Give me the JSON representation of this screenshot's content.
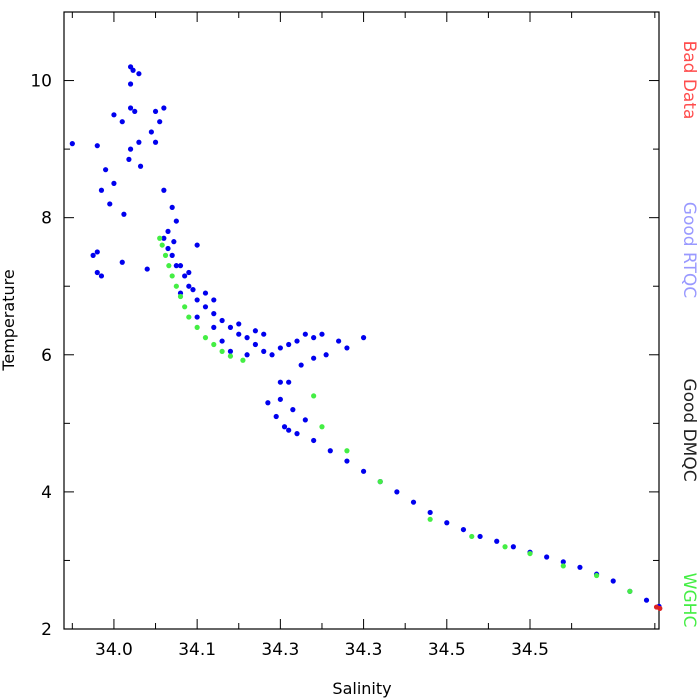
{
  "chart_data": {
    "type": "scatter",
    "title": "",
    "xlabel": "Salinity",
    "ylabel": "Temperature",
    "xlim": [
      33.94,
      34.655
    ],
    "ylim": [
      2.0,
      11.0
    ],
    "grid": false,
    "x_tick_labels": [
      "34.0",
      "34.1",
      "34.3",
      "34.3",
      "34.5",
      "34.5"
    ],
    "y_tick_labels": [
      "2",
      "4",
      "6",
      "8",
      "10"
    ],
    "legend": {
      "placement": "right",
      "entries": [
        {
          "label": "Bad Data",
          "color": "#ff4d4d"
        },
        {
          "label": "Good RTQC",
          "color": "#9999ff"
        },
        {
          "label": "Good DMQC",
          "color": "#222222"
        },
        {
          "label": "WGHC",
          "color": "#44ee44"
        }
      ]
    },
    "series": [
      {
        "name": "Good RTQC",
        "color": "#0000ee",
        "points": [
          [
            34.02,
            10.2
          ],
          [
            34.023,
            10.15
          ],
          [
            34.03,
            10.1
          ],
          [
            34.02,
            9.95
          ],
          [
            34.02,
            9.6
          ],
          [
            34.0,
            9.5
          ],
          [
            34.01,
            9.4
          ],
          [
            34.025,
            9.55
          ],
          [
            34.05,
            9.55
          ],
          [
            34.055,
            9.4
          ],
          [
            34.045,
            9.25
          ],
          [
            34.05,
            9.1
          ],
          [
            34.06,
            9.6
          ],
          [
            33.98,
            9.05
          ],
          [
            33.95,
            9.08
          ],
          [
            33.99,
            8.7
          ],
          [
            33.985,
            8.4
          ],
          [
            33.995,
            8.2
          ],
          [
            34.0,
            8.5
          ],
          [
            34.012,
            8.05
          ],
          [
            34.018,
            8.85
          ],
          [
            34.02,
            9.0
          ],
          [
            34.03,
            9.1
          ],
          [
            34.032,
            8.75
          ],
          [
            34.06,
            8.4
          ],
          [
            34.07,
            8.15
          ],
          [
            34.075,
            7.95
          ],
          [
            34.065,
            7.8
          ],
          [
            34.072,
            7.65
          ],
          [
            34.06,
            7.7
          ],
          [
            33.98,
            7.5
          ],
          [
            33.975,
            7.45
          ],
          [
            33.98,
            7.2
          ],
          [
            33.985,
            7.15
          ],
          [
            34.01,
            7.35
          ],
          [
            34.04,
            7.25
          ],
          [
            34.07,
            7.45
          ],
          [
            34.08,
            7.3
          ],
          [
            34.085,
            7.15
          ],
          [
            34.09,
            7.0
          ],
          [
            34.095,
            6.95
          ],
          [
            34.1,
            6.8
          ],
          [
            34.11,
            6.7
          ],
          [
            34.12,
            6.6
          ],
          [
            34.13,
            6.5
          ],
          [
            34.14,
            6.4
          ],
          [
            34.15,
            6.3
          ],
          [
            34.16,
            6.25
          ],
          [
            34.17,
            6.15
          ],
          [
            34.18,
            6.05
          ],
          [
            34.19,
            6.0
          ],
          [
            34.2,
            6.1
          ],
          [
            34.21,
            6.15
          ],
          [
            34.22,
            6.2
          ],
          [
            34.23,
            6.3
          ],
          [
            34.24,
            6.25
          ],
          [
            34.25,
            6.3
          ],
          [
            34.27,
            6.2
          ],
          [
            34.3,
            6.25
          ],
          [
            34.28,
            6.1
          ],
          [
            34.255,
            6.0
          ],
          [
            34.24,
            5.95
          ],
          [
            34.225,
            5.85
          ],
          [
            34.21,
            5.6
          ],
          [
            34.2,
            5.35
          ],
          [
            34.195,
            5.1
          ],
          [
            34.21,
            4.9
          ],
          [
            34.22,
            4.85
          ],
          [
            34.24,
            4.75
          ],
          [
            34.26,
            4.6
          ],
          [
            34.28,
            4.45
          ],
          [
            34.3,
            4.3
          ],
          [
            34.32,
            4.15
          ],
          [
            34.34,
            4.0
          ],
          [
            34.36,
            3.85
          ],
          [
            34.38,
            3.7
          ],
          [
            34.4,
            3.55
          ],
          [
            34.42,
            3.45
          ],
          [
            34.44,
            3.35
          ],
          [
            34.46,
            3.28
          ],
          [
            34.48,
            3.2
          ],
          [
            34.5,
            3.12
          ],
          [
            34.52,
            3.05
          ],
          [
            34.54,
            2.98
          ],
          [
            34.56,
            2.9
          ],
          [
            34.58,
            2.8
          ],
          [
            34.6,
            2.7
          ],
          [
            34.62,
            2.55
          ],
          [
            34.64,
            2.42
          ],
          [
            34.655,
            2.33
          ],
          [
            34.2,
            5.6
          ],
          [
            34.215,
            5.2
          ],
          [
            34.185,
            5.3
          ],
          [
            34.23,
            5.05
          ],
          [
            34.205,
            4.95
          ],
          [
            34.1,
            6.55
          ],
          [
            34.12,
            6.4
          ],
          [
            34.13,
            6.2
          ],
          [
            34.15,
            6.45
          ],
          [
            34.17,
            6.35
          ],
          [
            34.14,
            6.05
          ],
          [
            34.16,
            6.0
          ],
          [
            34.18,
            6.3
          ],
          [
            34.08,
            6.9
          ],
          [
            34.09,
            7.2
          ],
          [
            34.1,
            7.6
          ],
          [
            34.11,
            6.9
          ],
          [
            34.12,
            6.8
          ],
          [
            34.065,
            7.55
          ],
          [
            34.075,
            7.3
          ]
        ]
      },
      {
        "name": "WGHC",
        "color": "#44ee44",
        "points": [
          [
            34.055,
            7.7
          ],
          [
            34.058,
            7.6
          ],
          [
            34.062,
            7.45
          ],
          [
            34.066,
            7.3
          ],
          [
            34.07,
            7.15
          ],
          [
            34.075,
            7.0
          ],
          [
            34.08,
            6.85
          ],
          [
            34.085,
            6.7
          ],
          [
            34.09,
            6.55
          ],
          [
            34.1,
            6.4
          ],
          [
            34.11,
            6.25
          ],
          [
            34.12,
            6.15
          ],
          [
            34.13,
            6.05
          ],
          [
            34.14,
            5.98
          ],
          [
            34.155,
            5.92
          ],
          [
            34.24,
            5.4
          ],
          [
            34.25,
            4.95
          ],
          [
            34.28,
            4.6
          ],
          [
            34.32,
            4.15
          ],
          [
            34.38,
            3.6
          ],
          [
            34.43,
            3.35
          ],
          [
            34.47,
            3.2
          ],
          [
            34.5,
            3.1
          ],
          [
            34.54,
            2.92
          ],
          [
            34.58,
            2.78
          ],
          [
            34.62,
            2.55
          ]
        ]
      },
      {
        "name": "Bad Data",
        "color": "#dd2222",
        "points": [
          [
            34.652,
            2.32
          ],
          [
            34.656,
            2.3
          ]
        ]
      }
    ]
  }
}
